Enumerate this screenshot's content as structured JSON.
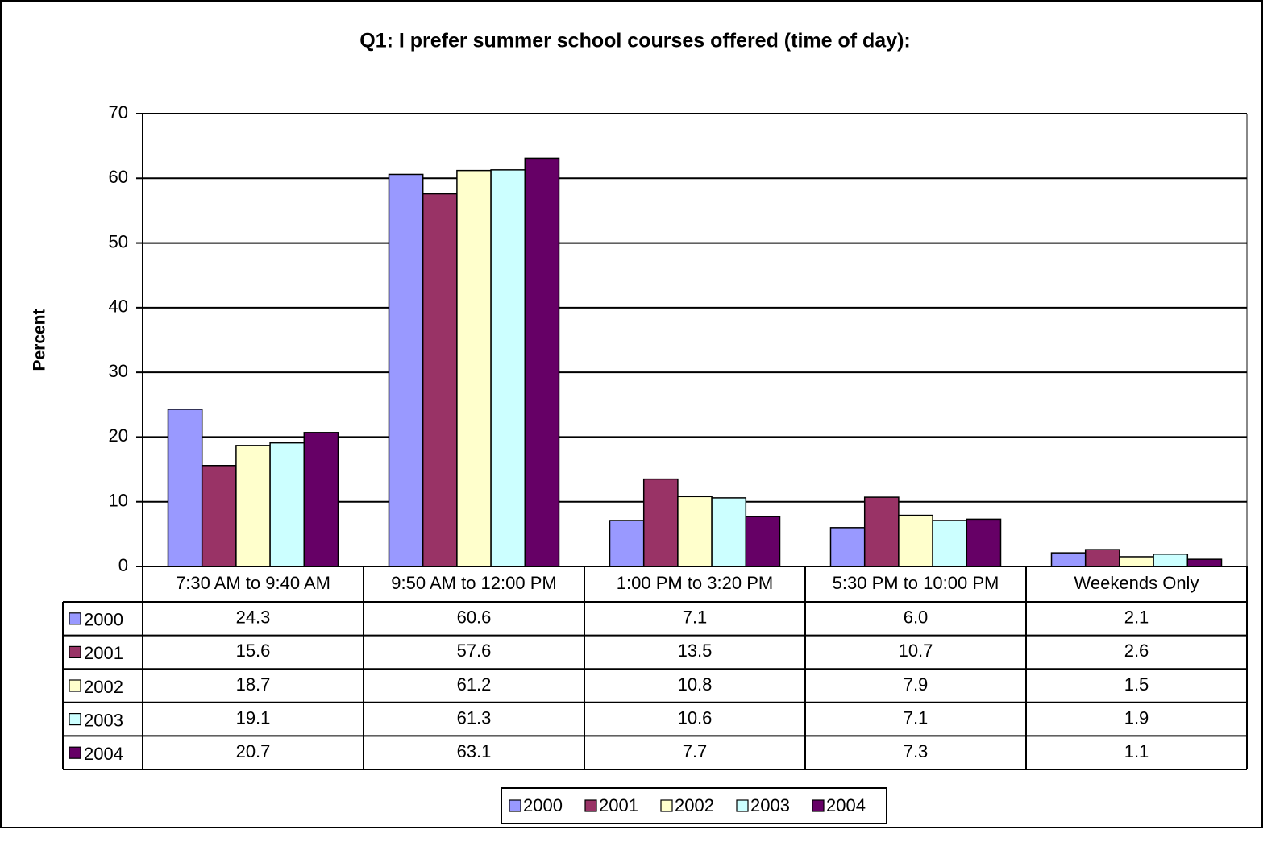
{
  "chart_data": {
    "type": "bar",
    "title": "Q1: I prefer summer school courses offered (time of day):",
    "y_label": "Percent",
    "categories": [
      "7:30 AM to 9:40 AM",
      "9:50 AM to 12:00 PM",
      "1:00 PM to 3:20 PM",
      "5:30 PM to 10:00 PM",
      "Weekends Only"
    ],
    "series": [
      {
        "name": "2000",
        "color": "#9999ff",
        "values": [
          24.3,
          60.6,
          7.1,
          6.0,
          2.1
        ],
        "value_labels": [
          "24.3",
          "60.6",
          "7.1",
          "6.0",
          "2.1"
        ]
      },
      {
        "name": "2001",
        "color": "#993366",
        "values": [
          15.6,
          57.6,
          13.5,
          10.7,
          2.6
        ],
        "value_labels": [
          "15.6",
          "57.6",
          "13.5",
          "10.7",
          "2.6"
        ]
      },
      {
        "name": "2002",
        "color": "#ffffcc",
        "values": [
          18.7,
          61.2,
          10.8,
          7.9,
          1.5
        ],
        "value_labels": [
          "18.7",
          "61.2",
          "10.8",
          "7.9",
          "1.5"
        ]
      },
      {
        "name": "2003",
        "color": "#ccffff",
        "values": [
          19.1,
          61.3,
          10.6,
          7.1,
          1.9
        ],
        "value_labels": [
          "19.1",
          "61.3",
          "10.6",
          "7.1",
          "1.9"
        ]
      },
      {
        "name": "2004",
        "color": "#660066",
        "values": [
          20.7,
          63.1,
          7.7,
          7.3,
          1.1
        ],
        "value_labels": [
          "20.7",
          "63.1",
          "7.7",
          "7.3",
          "1.1"
        ]
      }
    ],
    "ylim": [
      0,
      70
    ],
    "yticks": [
      0,
      10,
      20,
      30,
      40,
      50,
      60,
      70
    ],
    "grid": true,
    "legend": "bottom",
    "data_table": true
  }
}
